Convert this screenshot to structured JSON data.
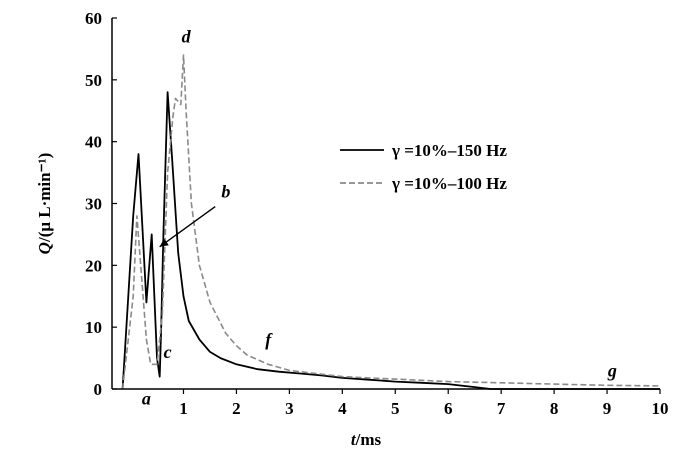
{
  "chart_data": {
    "type": "line",
    "xlabel": {
      "var": "t",
      "unit": "/ms"
    },
    "ylabel": {
      "var": "Q",
      "unit": "/(μ L·min⁻¹)"
    },
    "xlim": [
      -0.35,
      10
    ],
    "ylim": [
      0,
      60
    ],
    "xticks": [
      1,
      2,
      3,
      4,
      5,
      6,
      7,
      8,
      9,
      10
    ],
    "yticks": [
      0,
      10,
      20,
      30,
      40,
      50,
      60
    ],
    "grid": false,
    "legend_position": "upper-right",
    "series": [
      {
        "name": "γ =10%–150 Hz",
        "color": "#000000",
        "style": "solid",
        "x": [
          -0.15,
          0.05,
          0.15,
          0.3,
          0.4,
          0.5,
          0.55,
          0.58,
          0.62,
          0.7,
          0.78,
          0.9,
          1.0,
          1.1,
          1.3,
          1.5,
          1.7,
          2.0,
          2.4,
          2.8,
          3.2,
          3.6,
          4.0,
          4.5,
          5.0,
          5.5,
          6.0,
          6.5,
          6.8,
          10.0
        ],
        "y": [
          0,
          28,
          38,
          14,
          25,
          5,
          2,
          10,
          25,
          48,
          38,
          22,
          15,
          11,
          8,
          6,
          5,
          4,
          3.2,
          2.8,
          2.5,
          2.2,
          1.8,
          1.5,
          1.2,
          1.0,
          0.8,
          0.3,
          0,
          0
        ]
      },
      {
        "name": "γ =10%–100 Hz",
        "color": "#8a8a8a",
        "style": "dashed",
        "x": [
          -0.15,
          0.05,
          0.12,
          0.3,
          0.38,
          0.5,
          0.6,
          0.7,
          0.8,
          0.85,
          0.95,
          1.0,
          1.05,
          1.15,
          1.3,
          1.5,
          1.8,
          2.0,
          2.2,
          2.6,
          3.0,
          3.5,
          4.0,
          4.5,
          5.0,
          5.5,
          6.0,
          7.0,
          8.0,
          9.0,
          10.0
        ],
        "y": [
          0,
          15,
          28,
          8,
          4,
          4,
          12,
          35,
          44,
          47,
          46,
          54,
          45,
          30,
          20,
          14,
          9,
          7,
          5.5,
          4,
          3,
          2.5,
          2.0,
          1.8,
          1.6,
          1.4,
          1.2,
          1.0,
          0.8,
          0.6,
          0.5
        ]
      }
    ],
    "annotations": [
      {
        "text": "a",
        "x": 0.3,
        "y": -2.5
      },
      {
        "text": "b",
        "x": 1.8,
        "y": 31
      },
      {
        "text": "c",
        "x": 0.7,
        "y": 5
      },
      {
        "text": "d",
        "x": 1.05,
        "y": 56
      },
      {
        "text": "f",
        "x": 2.6,
        "y": 7
      },
      {
        "text": "g",
        "x": 9.1,
        "y": 2
      }
    ],
    "arrow": {
      "from": {
        "x": 1.6,
        "y": 29.5
      },
      "to": {
        "x": 0.55,
        "y": 23
      }
    }
  }
}
